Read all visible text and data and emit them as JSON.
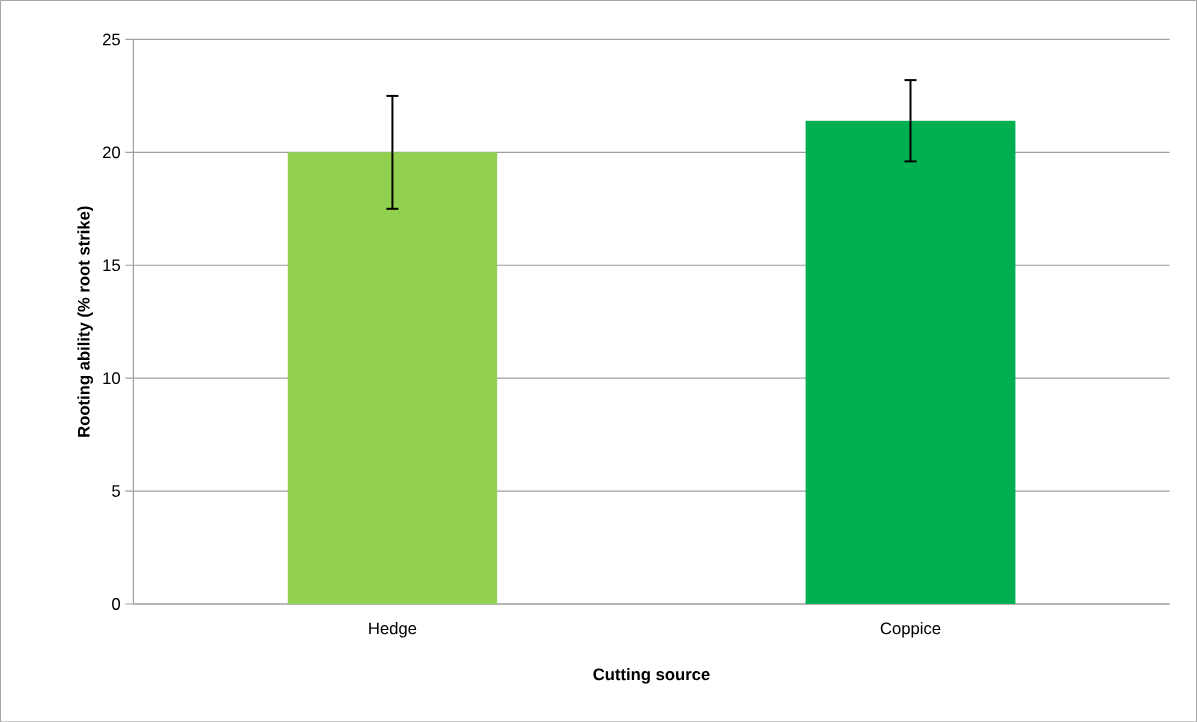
{
  "chart_data": {
    "type": "bar",
    "xlabel": "Cutting source",
    "ylabel": "Rooting ability (% root strike)",
    "categories": [
      "Hedge",
      "Coppice"
    ],
    "values": [
      20.0,
      21.4
    ],
    "errors": [
      2.5,
      1.8
    ],
    "colors": [
      "#92d050",
      "#00b050"
    ],
    "ylim": [
      0,
      25
    ],
    "yticks": [
      0,
      5,
      10,
      15,
      20,
      25
    ],
    "grid": "y"
  }
}
